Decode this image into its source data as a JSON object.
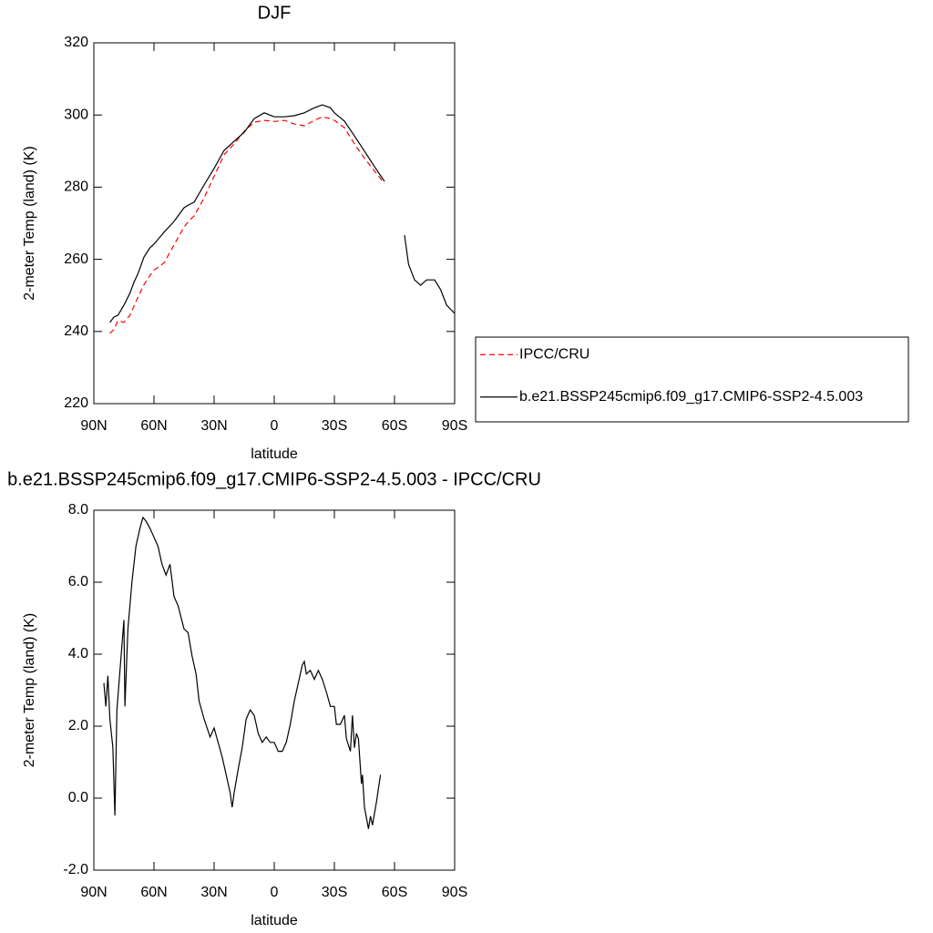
{
  "chart_data": [
    {
      "type": "line",
      "title": "DJF",
      "xlabel": "latitude",
      "ylabel": "2-meter Temp (land) (K)",
      "x": [
        82,
        80,
        78,
        75,
        72,
        70,
        68,
        65,
        62,
        60,
        55,
        50,
        45,
        42,
        40,
        35,
        30,
        25,
        20,
        15,
        10,
        5,
        0,
        -5,
        -10,
        -15,
        -20,
        -24,
        -28,
        -30,
        -35,
        -40,
        -45,
        -50,
        -55,
        -63,
        -65,
        -67,
        -70,
        -73,
        -76,
        -80,
        -83,
        -86,
        -90
      ],
      "series": [
        {
          "name": "IPCC/CRU",
          "color": "#ff0000",
          "line_style": "dashed",
          "values": [
            239.5,
            240.5,
            243,
            242.5,
            244.5,
            247,
            249.5,
            253,
            255.5,
            257,
            259,
            264,
            269,
            271,
            272,
            277,
            283,
            289,
            292,
            295.5,
            298,
            298.5,
            298.2,
            298.5,
            297.5,
            297,
            298.5,
            299.5,
            299,
            298.5,
            296.5,
            292,
            288,
            284.5,
            281,
            null,
            null,
            null,
            null,
            null,
            null,
            null,
            null,
            null,
            null
          ]
        },
        {
          "name": "b.e21.BSSP245cmip6.f09_g17.CMIP6-SSP2-4.5.003",
          "color": "#000000",
          "line_style": "solid",
          "values": [
            242.5,
            244,
            244.5,
            247.3,
            250.6,
            253.6,
            256,
            260.6,
            263.2,
            264.2,
            267.5,
            270.5,
            274.3,
            275.3,
            275.8,
            280.6,
            285.2,
            290.2,
            292.7,
            295.2,
            299,
            300.6,
            299.5,
            299.5,
            299.8,
            300.6,
            302,
            302.8,
            302,
            300.6,
            298.3,
            294.2,
            290,
            285.7,
            281.6,
            null,
            266.7,
            258.6,
            254.3,
            252.8,
            254.3,
            254.3,
            251.6,
            247.3,
            245
          ]
        }
      ],
      "xlim": [
        90,
        -90
      ],
      "xticks": [
        {
          "value": 90,
          "label": "90N"
        },
        {
          "value": 60,
          "label": "60N"
        },
        {
          "value": 30,
          "label": "30N"
        },
        0,
        {
          "value": -30,
          "label": "30S"
        },
        {
          "value": -60,
          "label": "60S"
        },
        {
          "value": -90,
          "label": "90S"
        }
      ],
      "ylim": [
        220,
        320
      ],
      "yticks": [
        220,
        240,
        260,
        280,
        300,
        320
      ],
      "legend": "right"
    },
    {
      "type": "line",
      "title": "b.e21.BSSP245cmip6.f09_g17.CMIP6-SSP2-4.5.003 - IPCC/CRU",
      "xlabel": "latitude",
      "ylabel": "2-meter Temp (land) (K)",
      "x": [
        85,
        84,
        83,
        82,
        80.5,
        79.5,
        78.5,
        75,
        74.5,
        73,
        71,
        69,
        67,
        65.5,
        64,
        62,
        60,
        58,
        56,
        54,
        52,
        50,
        48,
        45,
        43,
        41,
        39,
        37.5,
        35,
        32,
        30,
        28,
        26,
        24,
        22,
        21,
        20,
        18,
        16,
        14,
        12,
        10,
        8,
        6,
        4,
        2,
        0,
        -2,
        -4,
        -6,
        -8,
        -10,
        -12,
        -14,
        -15,
        -16,
        -18,
        -20,
        -22,
        -24,
        -26,
        -28,
        -30,
        -31,
        -33,
        -35,
        -36,
        -38,
        -39,
        -40,
        -41,
        -42,
        -43.5,
        -44,
        -45,
        -47,
        -48,
        -49,
        -51,
        -53
      ],
      "series": [
        {
          "name": "b.e21.BSSP245cmip6.f09_g17.CMIP6-SSP2-4.5.003 - IPCC/CRU",
          "color": "#000000",
          "line_style": "solid",
          "values": [
            3.2,
            2.55,
            3.4,
            2.2,
            1.4,
            -0.48,
            2.45,
            4.95,
            2.55,
            4.7,
            6.0,
            7.0,
            7.5,
            7.8,
            7.7,
            7.5,
            7.25,
            7.0,
            6.5,
            6.2,
            6.5,
            5.6,
            5.35,
            4.7,
            4.6,
            3.95,
            3.45,
            2.7,
            2.2,
            1.7,
            1.95,
            1.55,
            1.15,
            0.65,
            0.15,
            -0.25,
            0.15,
            0.8,
            1.4,
            2.2,
            2.45,
            2.3,
            1.8,
            1.55,
            1.7,
            1.55,
            1.55,
            1.3,
            1.3,
            1.55,
            2.05,
            2.7,
            3.2,
            3.7,
            3.8,
            3.45,
            3.55,
            3.3,
            3.55,
            3.3,
            2.95,
            2.55,
            2.55,
            2.05,
            2.05,
            2.3,
            1.65,
            1.3,
            2.3,
            1.4,
            1.8,
            1.65,
            0.4,
            0.65,
            -0.25,
            -0.85,
            -0.5,
            -0.75,
            -0.1,
            0.65
          ]
        }
      ],
      "xlim": [
        90,
        -90
      ],
      "xticks": [
        {
          "value": 90,
          "label": "90N"
        },
        {
          "value": 60,
          "label": "60N"
        },
        {
          "value": 30,
          "label": "30N"
        },
        0,
        {
          "value": -30,
          "label": "30S"
        },
        {
          "value": -60,
          "label": "60S"
        },
        {
          "value": -90,
          "label": "90S"
        }
      ],
      "ylim": [
        -2,
        8
      ],
      "yticks": [
        {
          "value": -2,
          "label": "-2.0"
        },
        {
          "value": 0,
          "label": "0.0"
        },
        {
          "value": 2,
          "label": "2.0"
        },
        {
          "value": 4,
          "label": "4.0"
        },
        {
          "value": 6,
          "label": "6.0"
        },
        {
          "value": 8,
          "label": "8.0"
        }
      ]
    }
  ]
}
